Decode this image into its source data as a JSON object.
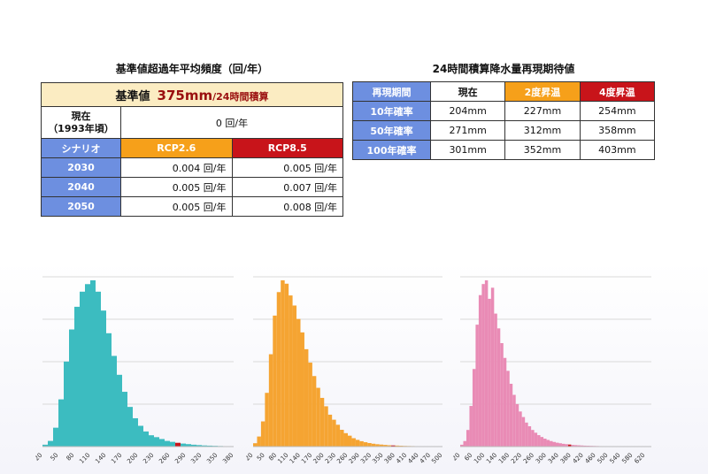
{
  "table1": {
    "title": "基準値超過年平均頻度（回/年）",
    "base_label": "基準値",
    "base_value": "375mm",
    "base_unit": "/24時間積算",
    "current_label": "現在\n（1993年頃）",
    "current_value": "0 回/年",
    "scenario_header": "シナリオ",
    "rcp26": "RCP2.6",
    "rcp85": "RCP8.5",
    "rows": [
      {
        "year": "2030",
        "rcp26": "0.004 回/年",
        "rcp85": "0.005 回/年"
      },
      {
        "year": "2040",
        "rcp26": "0.005 回/年",
        "rcp85": "0.007 回/年"
      },
      {
        "year": "2050",
        "rcp26": "0.005 回/年",
        "rcp85": "0.008 回/年"
      }
    ]
  },
  "table2": {
    "title": "24時間積算降水量再現期待値",
    "headers": [
      "再現期間",
      "現在",
      "2度昇温",
      "4度昇温"
    ],
    "rows": [
      {
        "label": "10年確率",
        "values": [
          "204mm",
          "227mm",
          "254mm"
        ]
      },
      {
        "label": "50年確率",
        "values": [
          "271mm",
          "312mm",
          "358mm"
        ]
      },
      {
        "label": "100年確率",
        "values": [
          "301mm",
          "352mm",
          "403mm"
        ]
      }
    ]
  },
  "colors": {
    "hist1": "#3cbcc0",
    "hist2": "#f5a432",
    "hist3": "#e98bb5",
    "threshold": "#c8141a",
    "header_blue": "#6d8fe0",
    "header_orange": "#f6a01a",
    "header_red": "#c8141a"
  },
  "chart_data": [
    {
      "type": "bar",
      "x_ticks": [
        "20",
        "50",
        "80",
        "110",
        "140",
        "170",
        "200",
        "230",
        "260",
        "290",
        "320",
        "350",
        "380"
      ],
      "xlim": [
        20,
        380
      ],
      "bin_width": 10,
      "threshold_bin": 275,
      "values": [
        1,
        3,
        10,
        25,
        45,
        62,
        74,
        82,
        86,
        88,
        82,
        72,
        60,
        48,
        38,
        29,
        21,
        15,
        11,
        8,
        6,
        5,
        4,
        3,
        2.5,
        2,
        1.6,
        1.3,
        1,
        0.8,
        0.6,
        0.5,
        0.4,
        0.3,
        0.2,
        0.2
      ],
      "grid": true
    },
    {
      "type": "bar",
      "x_ticks": [
        "20",
        "50",
        "80",
        "110",
        "140",
        "170",
        "200",
        "230",
        "260",
        "290",
        "320",
        "350",
        "380",
        "410",
        "440",
        "470",
        "500"
      ],
      "xlim": [
        20,
        500
      ],
      "bin_width": 10,
      "threshold_bin": 375,
      "values": [
        2,
        6,
        15,
        32,
        55,
        78,
        92,
        99,
        97,
        90,
        84,
        76,
        68,
        58,
        50,
        42,
        35,
        29,
        24,
        19,
        16,
        13,
        10,
        8,
        6.5,
        5,
        4,
        3.2,
        2.6,
        2.1,
        1.7,
        1.4,
        1.2,
        1,
        0.8,
        0.7,
        0.6,
        0.5,
        0.4,
        0.35,
        0.3,
        0.25,
        0.2,
        0.2,
        0.15,
        0.1,
        0.1,
        0.1
      ],
      "grid": true
    },
    {
      "type": "bar",
      "x_ticks": [
        "20",
        "60",
        "100",
        "140",
        "180",
        "220",
        "260",
        "300",
        "340",
        "380",
        "420",
        "460",
        "500",
        "540",
        "580",
        "620"
      ],
      "xlim": [
        20,
        640
      ],
      "bin_width": 10,
      "threshold_bin": 375,
      "values": [
        1,
        3,
        9,
        22,
        42,
        66,
        82,
        88,
        90,
        80,
        86,
        72,
        64,
        56,
        48,
        41,
        34,
        28,
        23,
        19,
        16,
        13,
        11,
        9,
        7.5,
        6.2,
        5.2,
        4.3,
        3.6,
        3,
        2.5,
        2.1,
        1.8,
        1.5,
        1.3,
        1.1,
        0.9,
        0.8,
        0.7,
        0.6,
        0.5,
        0.45,
        0.4,
        0.35,
        0.3,
        0.25,
        0.2,
        0.2,
        0.15,
        0.15,
        0.1,
        0.1,
        0.1,
        0.1,
        0.1,
        0.1,
        0.1,
        0.1,
        0.1,
        0.1,
        0.1,
        0.1
      ],
      "grid": true
    }
  ]
}
